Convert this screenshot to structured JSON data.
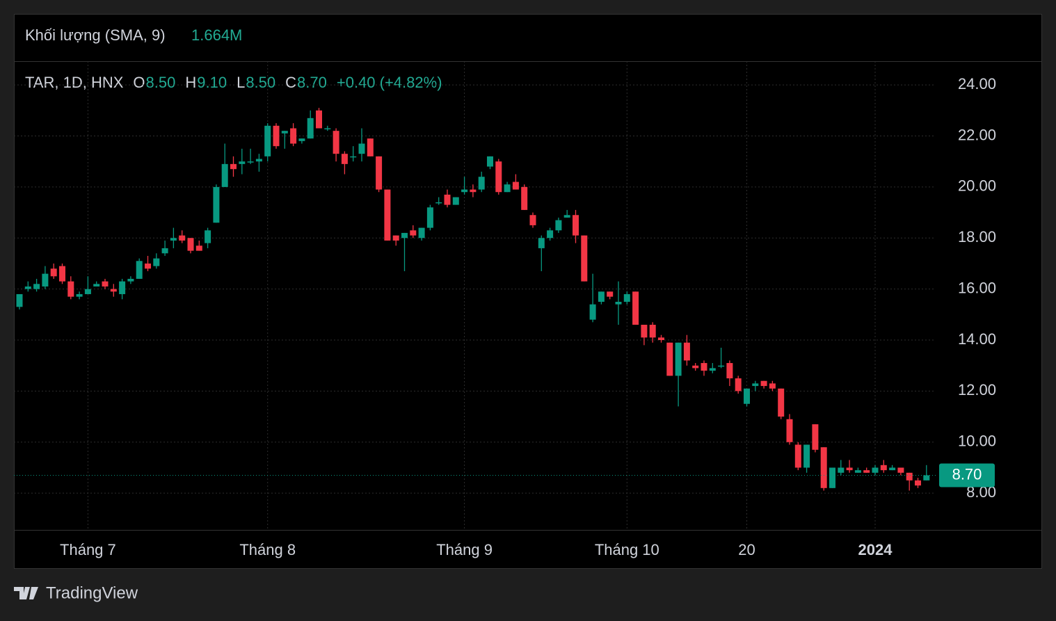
{
  "header": {
    "indicator": "Khối lượng (SMA, 9)",
    "indicator_value": "1.664M",
    "symbol": "TAR, 1D, HNX",
    "ohlc": [
      {
        "label": "O",
        "value": "8.50"
      },
      {
        "label": "H",
        "value": "9.10"
      },
      {
        "label": "L",
        "value": "8.50"
      },
      {
        "label": "C",
        "value": "8.70"
      }
    ],
    "change": "+0.40 (+4.82%)"
  },
  "brand": "TradingView",
  "chart_data": {
    "type": "candlestick",
    "categories": [
      null,
      null,
      null,
      null,
      null,
      null,
      null,
      null,
      "Tháng 7",
      null,
      null,
      null,
      null,
      null,
      null,
      null,
      null,
      null,
      null,
      null,
      null,
      null,
      null,
      null,
      null,
      null,
      null,
      null,
      null,
      "Tháng 8",
      null,
      null,
      null,
      null,
      null,
      null,
      null,
      null,
      null,
      null,
      null,
      null,
      null,
      null,
      null,
      null,
      null,
      null,
      null,
      null,
      null,
      null,
      "Tháng 9",
      null,
      null,
      null,
      null,
      null,
      null,
      null,
      null,
      null,
      null,
      null,
      null,
      null,
      null,
      null,
      null,
      null,
      null,
      "Tháng 10",
      null,
      null,
      null,
      null,
      null,
      null,
      null,
      null,
      null,
      null,
      null,
      null,
      null,
      "20",
      null,
      null,
      null,
      null,
      null,
      null,
      null,
      null,
      null,
      null,
      null,
      null,
      null,
      null,
      "2024",
      null,
      null,
      null,
      null,
      null,
      null
    ],
    "open": [
      15.3,
      16.0,
      16.0,
      16.1,
      16.8,
      16.9,
      16.3,
      15.7,
      15.8,
      16.1,
      16.3,
      16.0,
      15.8,
      16.3,
      16.4,
      17.0,
      16.9,
      17.4,
      17.9,
      18.1,
      18.0,
      17.7,
      17.8,
      18.6,
      20.0,
      20.9,
      20.9,
      21.0,
      21.0,
      21.2,
      22.4,
      22.1,
      22.3,
      21.8,
      21.9,
      23.0,
      22.3,
      22.2,
      21.3,
      21.2,
      21.3,
      21.9,
      21.2,
      19.9,
      18.1,
      18.0,
      18.3,
      18.0,
      18.4,
      19.4,
      19.7,
      19.3,
      19.8,
      19.9,
      19.9,
      20.8,
      21.0,
      19.8,
      20.2,
      20.0,
      18.9,
      17.6,
      18.0,
      18.3,
      18.8,
      18.9,
      18.1,
      14.8,
      15.5,
      15.9,
      15.4,
      15.5,
      15.9,
      14.6,
      14.6,
      14.1,
      13.9,
      12.6,
      13.9,
      13.0,
      13.1,
      12.8,
      13.0,
      13.1,
      12.5,
      11.5,
      12.2,
      12.4,
      12.3,
      12.1,
      10.9,
      9.9,
      9.0,
      10.7,
      9.8,
      8.2,
      8.8,
      9.0,
      8.8,
      8.9,
      8.8,
      9.1,
      8.9,
      9.0,
      8.8,
      8.5,
      8.5
    ],
    "high": [
      15.8,
      16.3,
      16.4,
      16.9,
      17.0,
      17.0,
      16.5,
      15.9,
      16.5,
      16.3,
      16.4,
      16.2,
      16.4,
      16.5,
      17.2,
      17.3,
      17.4,
      17.9,
      18.4,
      18.3,
      18.0,
      17.9,
      18.4,
      20.1,
      21.7,
      21.2,
      21.5,
      21.5,
      21.3,
      22.5,
      22.5,
      22.2,
      22.5,
      21.9,
      23.0,
      23.1,
      22.4,
      22.3,
      21.4,
      21.6,
      22.3,
      21.9,
      21.2,
      19.9,
      18.1,
      18.2,
      18.5,
      18.4,
      19.3,
      19.6,
      19.9,
      19.6,
      20.4,
      20.1,
      20.6,
      21.2,
      21.1,
      20.2,
      20.5,
      20.1,
      19.0,
      18.1,
      18.4,
      18.8,
      19.1,
      19.1,
      18.1,
      16.6,
      15.9,
      15.9,
      16.3,
      15.9,
      15.9,
      14.6,
      14.7,
      14.2,
      13.9,
      13.9,
      14.2,
      13.1,
      13.2,
      13.1,
      13.7,
      13.2,
      12.6,
      12.1,
      12.4,
      12.4,
      12.4,
      12.1,
      11.1,
      10.0,
      9.9,
      10.7,
      9.8,
      9.0,
      9.3,
      9.3,
      9.0,
      9.0,
      9.1,
      9.3,
      9.1,
      9.0,
      8.8,
      8.6,
      9.1
    ],
    "low": [
      15.2,
      15.9,
      15.9,
      16.0,
      16.4,
      16.2,
      15.6,
      15.6,
      15.8,
      16.1,
      16.0,
      15.7,
      15.6,
      16.2,
      16.4,
      16.7,
      16.8,
      17.3,
      17.6,
      17.8,
      17.4,
      17.5,
      17.6,
      18.6,
      20.0,
      20.4,
      20.5,
      20.9,
      20.6,
      21.0,
      21.5,
      21.5,
      21.6,
      21.7,
      21.9,
      22.3,
      22.2,
      21.0,
      20.5,
      21.0,
      21.0,
      21.2,
      19.8,
      17.9,
      17.7,
      16.7,
      18.0,
      17.9,
      18.3,
      19.3,
      19.2,
      19.3,
      19.7,
      19.6,
      19.8,
      20.7,
      19.7,
      19.8,
      19.9,
      19.1,
      18.4,
      16.7,
      17.9,
      18.2,
      18.8,
      17.8,
      16.3,
      14.7,
      15.4,
      15.6,
      14.6,
      15.4,
      14.6,
      13.8,
      13.9,
      13.9,
      12.6,
      11.4,
      13.0,
      12.8,
      12.6,
      12.7,
      12.9,
      12.2,
      11.9,
      11.4,
      12.0,
      12.1,
      12.0,
      10.9,
      9.9,
      8.9,
      8.8,
      9.6,
      8.1,
      8.2,
      8.7,
      8.8,
      8.8,
      8.8,
      8.7,
      8.8,
      8.9,
      8.7,
      8.1,
      8.2,
      8.5
    ],
    "close": [
      15.8,
      16.1,
      16.2,
      16.6,
      16.5,
      16.3,
      15.7,
      15.8,
      16.0,
      16.2,
      16.1,
      15.9,
      16.3,
      16.4,
      17.1,
      16.8,
      17.2,
      17.6,
      18.0,
      17.9,
      17.5,
      17.5,
      18.3,
      20.0,
      20.9,
      20.7,
      21.0,
      21.0,
      21.1,
      22.4,
      21.6,
      22.2,
      21.7,
      21.9,
      22.7,
      22.3,
      22.3,
      21.3,
      20.9,
      21.2,
      21.7,
      21.2,
      19.9,
      17.9,
      17.9,
      18.2,
      18.1,
      18.4,
      19.2,
      19.4,
      19.3,
      19.6,
      19.9,
      19.8,
      20.4,
      21.2,
      19.8,
      20.1,
      19.9,
      19.1,
      18.5,
      18.0,
      18.3,
      18.7,
      18.9,
      18.1,
      16.3,
      15.4,
      15.9,
      15.7,
      15.5,
      15.8,
      14.6,
      14.1,
      14.1,
      14.0,
      12.6,
      13.9,
      13.2,
      12.9,
      12.8,
      12.9,
      13.0,
      12.5,
      12.0,
      12.1,
      12.3,
      12.2,
      12.1,
      11.0,
      10.0,
      9.0,
      9.9,
      9.7,
      8.2,
      9.0,
      9.0,
      8.9,
      8.9,
      8.8,
      9.0,
      8.9,
      9.0,
      8.8,
      8.5,
      8.3,
      8.7
    ],
    "up_color": "#089981",
    "down_color": "#f23645",
    "ylim": [
      6.56,
      24.93
    ],
    "yticks": [
      {
        "value": 8,
        "label": "8.00"
      },
      {
        "value": 10,
        "label": "10.00"
      },
      {
        "value": 12,
        "label": "12.00"
      },
      {
        "value": 14,
        "label": "14.00"
      },
      {
        "value": 16,
        "label": "16.00"
      },
      {
        "value": 18,
        "label": "18.00"
      },
      {
        "value": 20,
        "label": "20.00"
      },
      {
        "value": 22,
        "label": "22.00"
      },
      {
        "value": 24,
        "label": "24.00"
      }
    ],
    "last_price": {
      "value": 8.7,
      "label": "8.70"
    },
    "grid": true
  }
}
